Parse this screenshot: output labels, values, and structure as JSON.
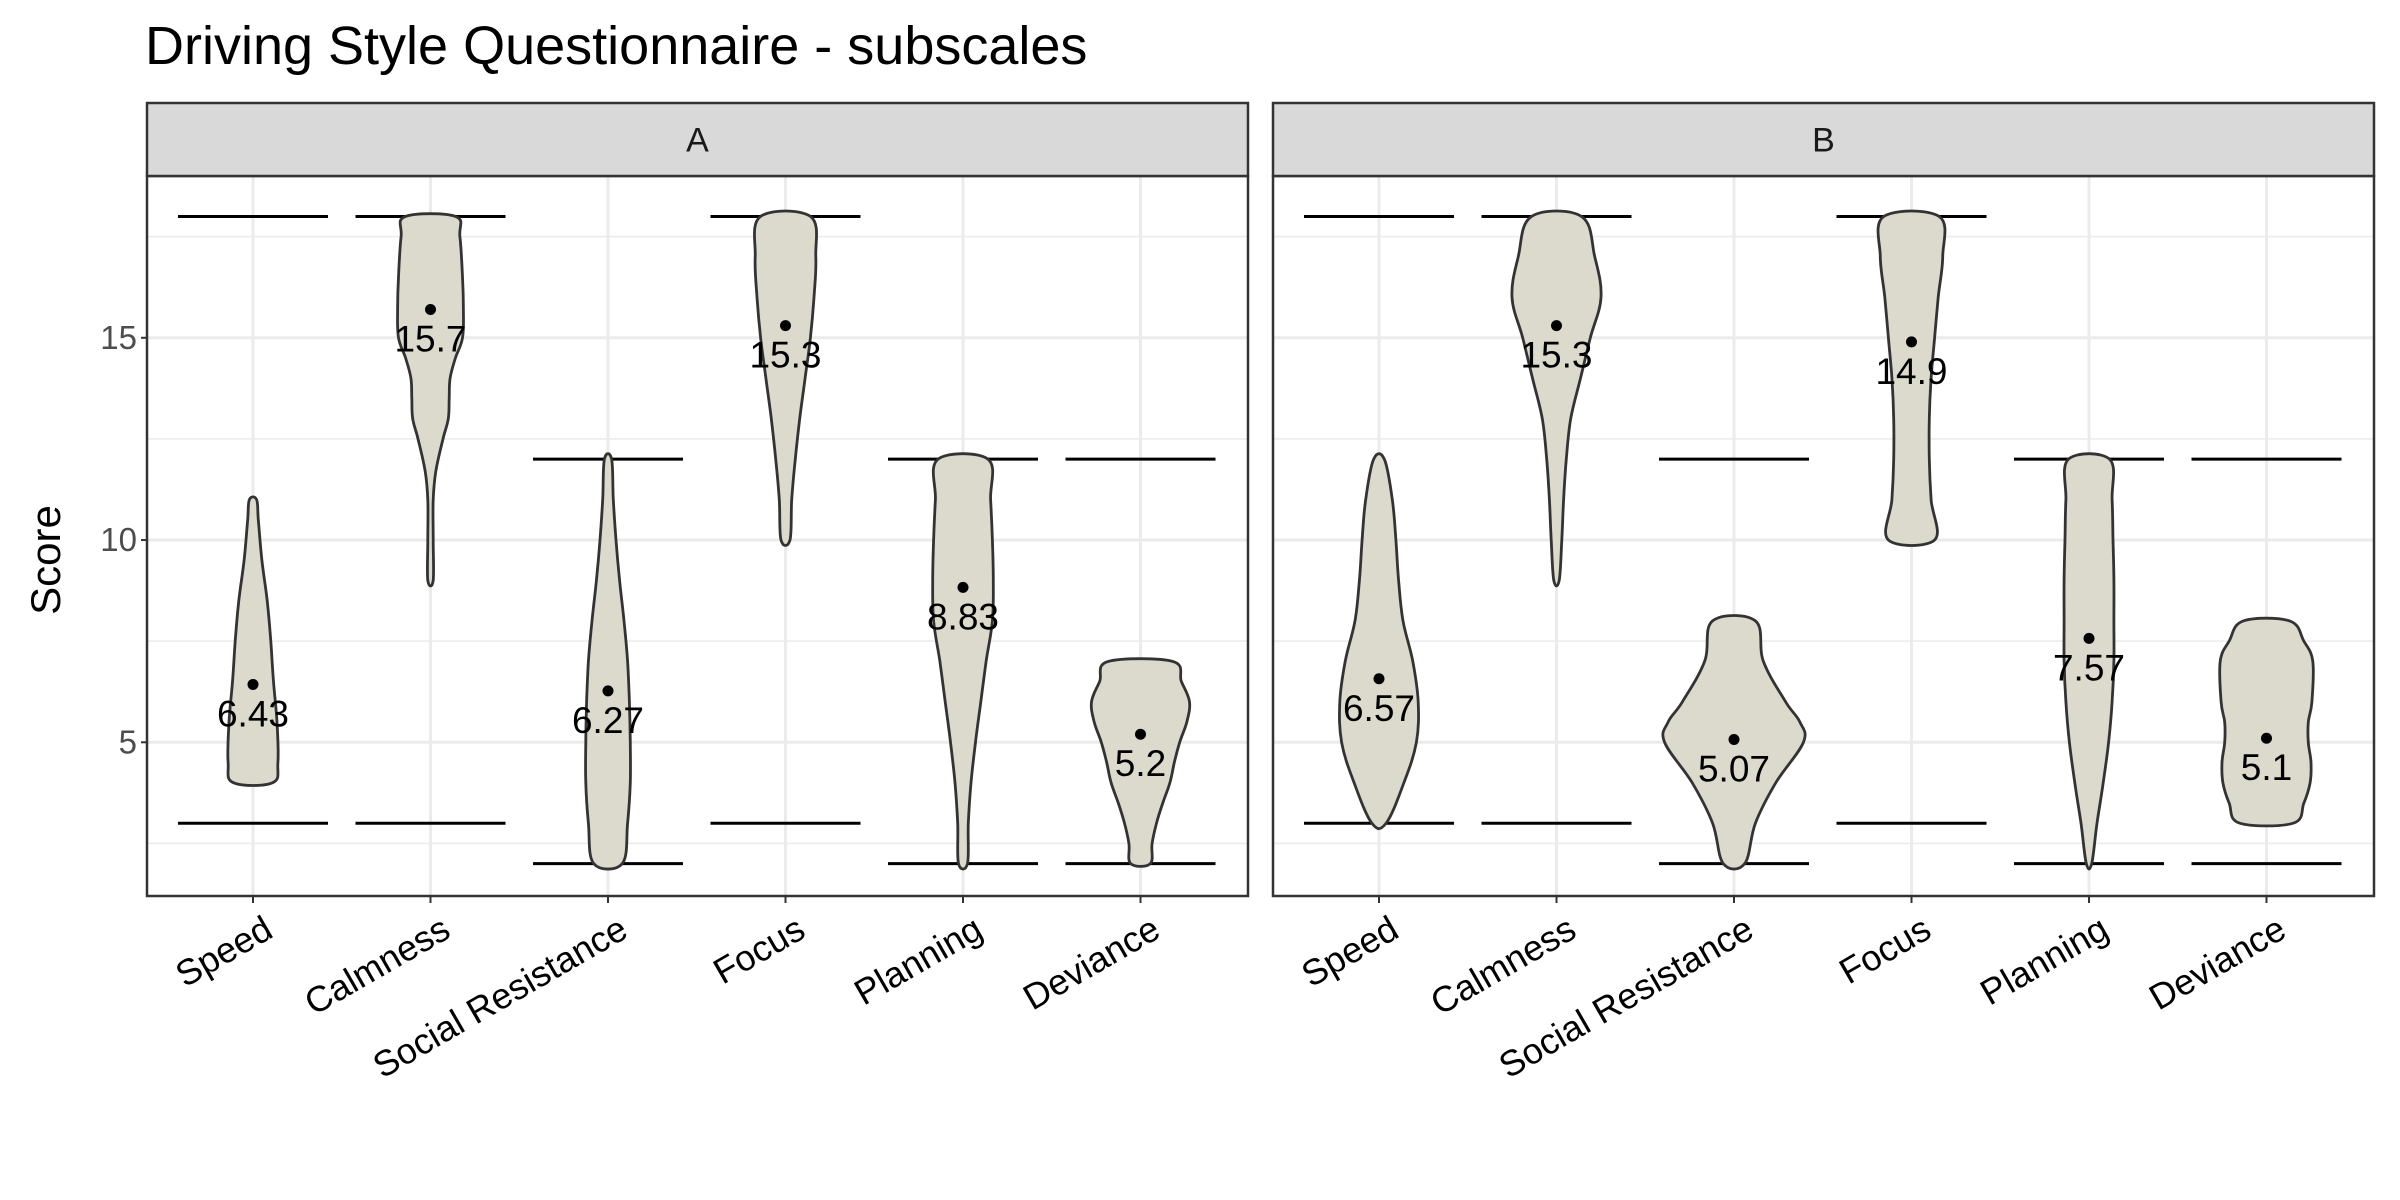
{
  "chart_data": {
    "type": "violin",
    "title": "Driving Style Questionnaire - subscales",
    "xlabel": "",
    "ylabel": "Score",
    "ylim": [
      1.2,
      19.0
    ],
    "yticks": [
      "5",
      "10",
      "15"
    ],
    "categories": [
      "Speed",
      "Calmness",
      "Social Resistance",
      "Focus",
      "Planning",
      "Deviance"
    ],
    "grid": true,
    "legend": "none",
    "colors": {
      "violin_fill": "#dcdacd",
      "outline": "#333333",
      "strip_bg": "#d9d9d9",
      "grid": "#ebebeb"
    },
    "panels": [
      {
        "label": "A",
        "violins": [
          {
            "category": "Speed",
            "mean": 6.43,
            "mean_label": "6.43",
            "range_lines": [
              3,
              18
            ],
            "profile": [
              [
                4,
                22
              ],
              [
                4.5,
                28
              ],
              [
                5.5,
                27
              ],
              [
                6.5,
                23
              ],
              [
                7.5,
                20
              ],
              [
                8.5,
                16
              ],
              [
                9.5,
                10
              ],
              [
                10.5,
                6
              ],
              [
                11,
                4
              ]
            ]
          },
          {
            "category": "Calmness",
            "mean": 15.7,
            "mean_label": "15.7",
            "range_lines": [
              3,
              18
            ],
            "profile": [
              [
                9,
                3
              ],
              [
                10,
                3
              ],
              [
                11,
                3
              ],
              [
                11.7,
                6
              ],
              [
                12.5,
                14
              ],
              [
                13,
                20
              ],
              [
                13.5,
                21
              ],
              [
                14,
                22
              ],
              [
                14.5,
                28
              ],
              [
                15,
                36
              ],
              [
                15.7,
                37
              ],
              [
                16.5,
                36
              ],
              [
                17.5,
                33
              ],
              [
                18,
                28
              ]
            ]
          },
          {
            "category": "Social Resistance",
            "mean": 6.27,
            "mean_label": "6.27",
            "range_lines": [
              2,
              12
            ],
            "profile": [
              [
                2,
                16
              ],
              [
                3,
                22
              ],
              [
                4,
                25
              ],
              [
                5,
                25
              ],
              [
                6,
                24
              ],
              [
                7,
                22
              ],
              [
                8,
                18
              ],
              [
                9,
                13
              ],
              [
                10,
                9
              ],
              [
                11,
                6
              ],
              [
                12,
                4
              ]
            ]
          },
          {
            "category": "Focus",
            "mean": 15.3,
            "mean_label": "15.3",
            "range_lines": [
              3,
              18
            ],
            "profile": [
              [
                10,
                5
              ],
              [
                11,
                7
              ],
              [
                12,
                11
              ],
              [
                13,
                16
              ],
              [
                14,
                22
              ],
              [
                15,
                28
              ],
              [
                16,
                32
              ],
              [
                17,
                34
              ],
              [
                18,
                28
              ]
            ]
          },
          {
            "category": "Planning",
            "mean": 8.83,
            "mean_label": "8.83",
            "range_lines": [
              2,
              12
            ],
            "profile": [
              [
                2,
                5
              ],
              [
                3,
                6
              ],
              [
                4,
                9
              ],
              [
                5,
                14
              ],
              [
                6,
                20
              ],
              [
                7,
                26
              ],
              [
                8,
                33
              ],
              [
                9,
                34
              ],
              [
                10,
                33
              ],
              [
                11,
                31
              ],
              [
                12,
                28
              ]
            ]
          },
          {
            "category": "Deviance",
            "mean": 5.2,
            "mean_label": "5.2",
            "range_lines": [
              2,
              12
            ],
            "profile": [
              [
                2,
                11
              ],
              [
                2.5,
                13
              ],
              [
                3,
                18
              ],
              [
                3.5,
                25
              ],
              [
                4,
                33
              ],
              [
                4.5,
                38
              ],
              [
                5,
                44
              ],
              [
                5.5,
                52
              ],
              [
                6,
                55
              ],
              [
                6.5,
                46
              ],
              [
                7,
                36
              ]
            ]
          }
        ]
      },
      {
        "label": "B",
        "violins": [
          {
            "category": "Speed",
            "mean": 6.57,
            "mean_label": "6.57",
            "range_lines": [
              3,
              18
            ],
            "profile": [
              [
                3,
                8
              ],
              [
                4,
                28
              ],
              [
                5,
                42
              ],
              [
                6,
                44
              ],
              [
                7,
                38
              ],
              [
                8,
                27
              ],
              [
                9,
                22
              ],
              [
                10,
                19
              ],
              [
                11,
                15
              ],
              [
                12,
                6
              ]
            ]
          },
          {
            "category": "Calmness",
            "mean": 15.3,
            "mean_label": "15.3",
            "range_lines": [
              3,
              18
            ],
            "profile": [
              [
                9,
                3
              ],
              [
                10,
                6
              ],
              [
                11,
                8
              ],
              [
                12,
                11
              ],
              [
                13,
                16
              ],
              [
                14,
                27
              ],
              [
                15,
                38
              ],
              [
                16,
                50
              ],
              [
                17,
                43
              ],
              [
                18,
                28
              ]
            ]
          },
          {
            "category": "Social Resistance",
            "mean": 5.07,
            "mean_label": "5.07",
            "range_lines": [
              2,
              12
            ],
            "profile": [
              [
                2,
                12
              ],
              [
                3,
                24
              ],
              [
                4,
                47
              ],
              [
                5,
                78
              ],
              [
                5.5,
                74
              ],
              [
                6,
                58
              ],
              [
                7,
                33
              ],
              [
                8,
                24
              ]
            ]
          },
          {
            "category": "Focus",
            "mean": 14.9,
            "mean_label": "14.9",
            "range_lines": [
              3,
              18
            ],
            "profile": [
              [
                10,
                26
              ],
              [
                11,
                22
              ],
              [
                12,
                20
              ],
              [
                13,
                20
              ],
              [
                14,
                22
              ],
              [
                15,
                26
              ],
              [
                16,
                30
              ],
              [
                17,
                35
              ],
              [
                18,
                31
              ]
            ]
          },
          {
            "category": "Planning",
            "mean": 7.57,
            "mean_label": "7.57",
            "range_lines": [
              2,
              12
            ],
            "profile": [
              [
                2,
                3
              ],
              [
                3,
                9
              ],
              [
                4,
                16
              ],
              [
                5,
                22
              ],
              [
                6,
                26
              ],
              [
                7,
                28
              ],
              [
                8,
                28
              ],
              [
                9,
                28
              ],
              [
                10,
                27
              ],
              [
                11,
                26
              ],
              [
                12,
                23
              ]
            ]
          },
          {
            "category": "Deviance",
            "mean": 5.1,
            "mean_label": "5.1",
            "range_lines": [
              2,
              12
            ],
            "profile": [
              [
                3,
                30
              ],
              [
                3.5,
                42
              ],
              [
                4,
                49
              ],
              [
                4.5,
                50
              ],
              [
                5,
                47
              ],
              [
                5.5,
                47
              ],
              [
                6,
                51
              ],
              [
                7,
                52
              ],
              [
                7.5,
                42
              ],
              [
                8,
                26
              ]
            ]
          }
        ]
      }
    ]
  }
}
